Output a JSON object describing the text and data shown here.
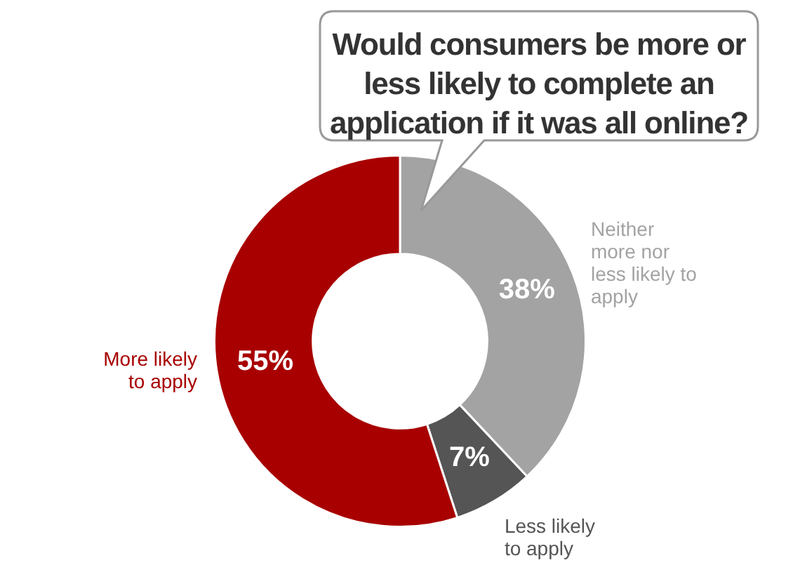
{
  "chart_data": {
    "type": "donut",
    "title": "Would consumers be more or less likely to complete an application if it was all online?",
    "categories": [
      "Neither more nor less likely to apply",
      "Less likely to apply",
      "More likely to apply"
    ],
    "values": [
      38,
      7,
      55
    ],
    "colors": [
      "#a3a3a3",
      "#555555",
      "#a80000"
    ],
    "value_labels": [
      "38%",
      "7%",
      "55%"
    ],
    "legend": false
  }
}
